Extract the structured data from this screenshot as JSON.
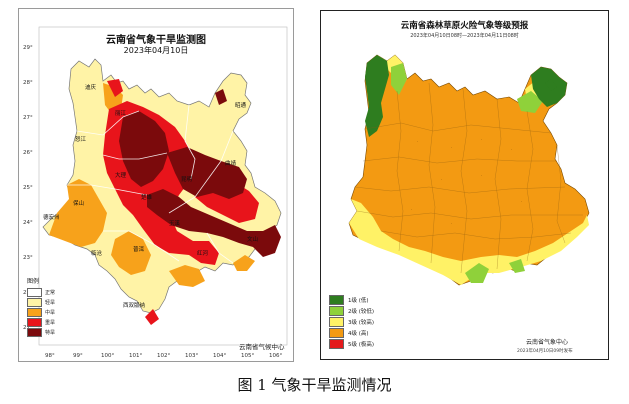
{
  "caption": "图 1 气象干旱监测情况",
  "left_map": {
    "title": "云南省气象干旱监测图",
    "date": "2023年04月10日",
    "legend_title": "图例",
    "legend": [
      {
        "label": "正常",
        "color": "#ffffff"
      },
      {
        "label": "轻旱",
        "color": "#fff3a6"
      },
      {
        "label": "中旱",
        "color": "#f7a21b"
      },
      {
        "label": "重旱",
        "color": "#e8141b"
      },
      {
        "label": "特旱",
        "color": "#7b0a0c"
      }
    ],
    "credit": "云南省气候中心",
    "lat_ticks": [
      "29°",
      "28°",
      "27°",
      "26°",
      "25°",
      "24°",
      "23°",
      "22°",
      "21°"
    ],
    "lon_ticks": [
      "98°",
      "99°",
      "100°",
      "101°",
      "102°",
      "103°",
      "104°",
      "105°",
      "106°"
    ],
    "place_labels": [
      "迪庆",
      "丽江",
      "怒江",
      "大理",
      "保山",
      "德宏州",
      "临沧",
      "普洱",
      "西双版纳",
      "楚雄",
      "玉溪",
      "红河",
      "文山",
      "昆明",
      "曲靖",
      "昭通"
    ]
  },
  "right_map": {
    "title": "云南省森林草原火险气象等级预报",
    "subtitle": "2023年04月10日08时—2023年04月11日08时",
    "legend": [
      {
        "label": "1级 (低)",
        "color": "#2e7d1f"
      },
      {
        "label": "2级 (较低)",
        "color": "#8fd13a"
      },
      {
        "label": "3级 (较高)",
        "color": "#fff266"
      },
      {
        "label": "4级 (高)",
        "color": "#f39a12"
      },
      {
        "label": "5级 (极高)",
        "color": "#e41a1c"
      }
    ],
    "org": "云南省气象中心",
    "issued": "2023年04月10日09时发布"
  }
}
